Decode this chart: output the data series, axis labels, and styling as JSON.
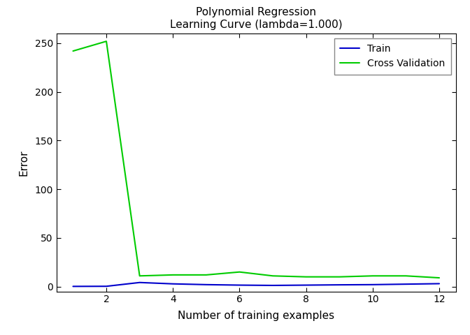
{
  "title_line1": "Polynomial Regression",
  "title_line2": "Learning Curve (lambda=1.000)",
  "xlabel": "Number of training examples",
  "ylabel": "Error",
  "xlim": [
    0.5,
    12.5
  ],
  "ylim": [
    -5,
    260
  ],
  "yticks": [
    0,
    50,
    100,
    150,
    200,
    250
  ],
  "xticks": [
    2,
    4,
    6,
    8,
    10,
    12
  ],
  "train_x": [
    1,
    2,
    3,
    4,
    5,
    6,
    7,
    8,
    9,
    10,
    11,
    12
  ],
  "train_y": [
    0.2,
    0.3,
    4.2,
    2.8,
    2.0,
    1.5,
    1.2,
    1.5,
    1.8,
    2.0,
    2.5,
    3.0
  ],
  "cv_x": [
    1,
    2,
    3,
    4,
    5,
    6,
    7,
    8,
    9,
    10,
    11,
    12
  ],
  "cv_y": [
    242,
    252,
    11,
    12,
    12,
    15,
    11,
    10,
    10,
    11,
    11,
    9
  ],
  "train_color": "#0000cc",
  "cv_color": "#00cc00",
  "train_label": "Train",
  "cv_label": "Cross Validation",
  "bg_color": "#ffffff",
  "linewidth": 1.5,
  "legend_loc": "upper right",
  "title_fontsize": 11,
  "axis_label_fontsize": 11,
  "tick_fontsize": 10,
  "legend_fontsize": 10
}
